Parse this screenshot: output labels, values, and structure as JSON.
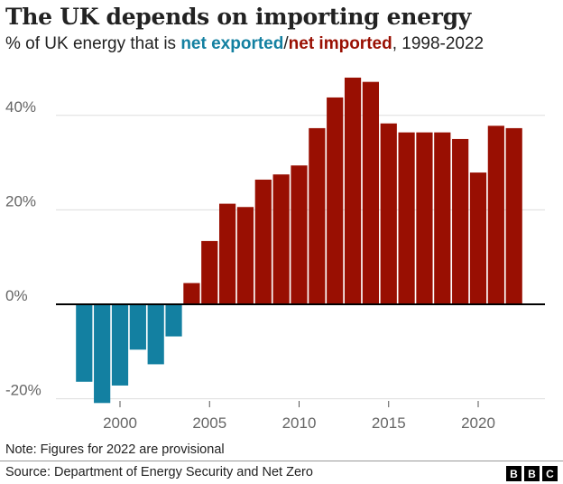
{
  "chart_data": {
    "type": "bar",
    "title": "The UK depends on importing energy",
    "subtitle": {
      "prefix": "% of UK energy that is ",
      "exported": "net exported",
      "sep": "/",
      "imported": "net imported",
      "suffix": ", 1998-2022"
    },
    "x": [
      1998,
      1999,
      2000,
      2001,
      2002,
      2003,
      2004,
      2005,
      2006,
      2007,
      2008,
      2009,
      2010,
      2011,
      2012,
      2013,
      2014,
      2015,
      2016,
      2017,
      2018,
      2019,
      2020,
      2021,
      2022
    ],
    "values": [
      -16.4,
      -20.9,
      -17.2,
      -9.6,
      -12.7,
      -6.8,
      4.5,
      13.4,
      21.3,
      20.6,
      26.4,
      27.5,
      29.4,
      37.3,
      43.8,
      48.0,
      47.1,
      38.3,
      36.4,
      36.4,
      36.4,
      35.0,
      27.9,
      37.8,
      37.3
    ],
    "ylim": [
      -20,
      48
    ],
    "yticks": [
      {
        "v": 40,
        "label": "40%"
      },
      {
        "v": 20,
        "label": "20%"
      },
      {
        "v": 0,
        "label": "0%"
      },
      {
        "v": -20,
        "label": "-20%"
      }
    ],
    "xticks": [
      {
        "v": 2000,
        "label": "2000"
      },
      {
        "v": 2005,
        "label": "2005"
      },
      {
        "v": 2010,
        "label": "2010"
      },
      {
        "v": 2015,
        "label": "2015"
      },
      {
        "v": 2020,
        "label": "2020"
      }
    ],
    "grid": true,
    "colors": {
      "exported": "#1380a1",
      "imported": "#990f02",
      "grid": "#dddddd",
      "baseline": "#000000"
    }
  },
  "note": "Note: Figures for 2022 are provisional",
  "source": "Source: Department of Energy Security and Net Zero",
  "logo": "BBC"
}
